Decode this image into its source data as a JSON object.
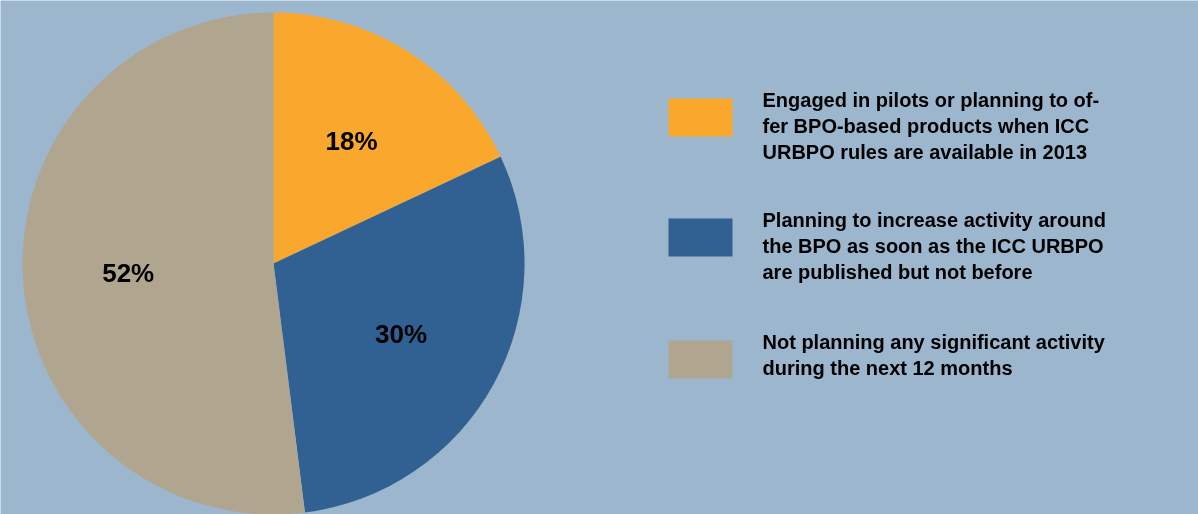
{
  "chart_data": {
    "type": "pie",
    "categories": [
      "Engaged in pilots or planning to of-\nfer BPO-based products when ICC\nURBPO rules are available in 2013",
      "Planning to increase activity around\nthe BPO as soon as the ICC URBPO\nare published but not before",
      "Not planning any significant activity\nduring the next 12 months"
    ],
    "values": [
      18,
      30,
      52
    ],
    "colors": [
      "#f9a82d",
      "#316193",
      "#b0a68f"
    ],
    "value_labels": [
      "18%",
      "30%",
      "52%"
    ],
    "legend": "right"
  }
}
